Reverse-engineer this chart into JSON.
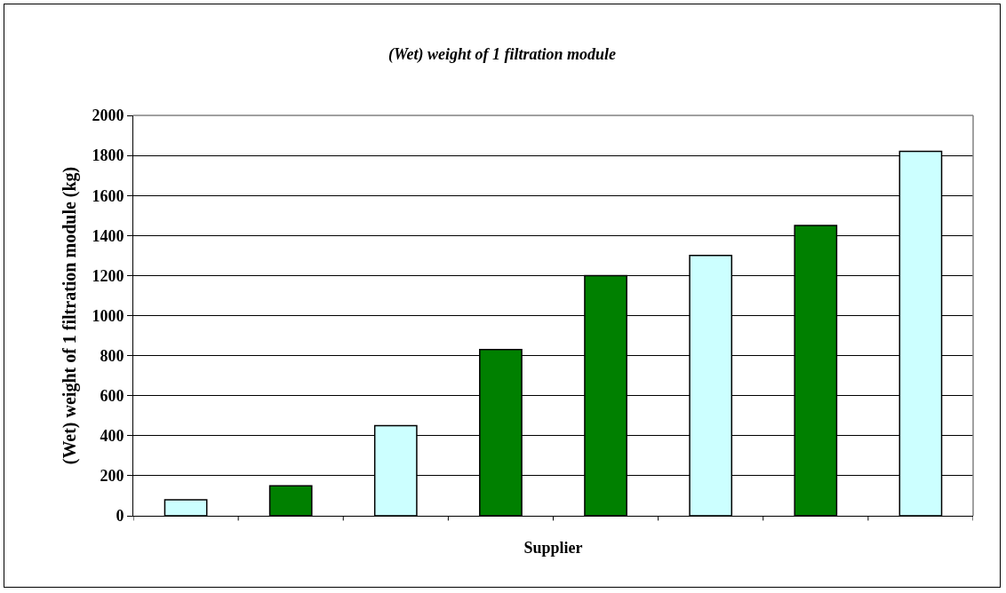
{
  "chart_data": {
    "type": "bar",
    "title": "(Wet) weight of 1 filtration module",
    "xlabel": "Supplier",
    "ylabel": "(Wet) weight of 1 filtration module (kg)",
    "categories": [
      null,
      null,
      null,
      null,
      null,
      null,
      null,
      null
    ],
    "values": [
      80,
      150,
      450,
      830,
      1200,
      1300,
      1450,
      1820
    ],
    "colors": [
      "#ccffff",
      "#008000",
      "#ccffff",
      "#008000",
      "#008000",
      "#ccffff",
      "#008000",
      "#ccffff"
    ],
    "ylim": [
      0,
      2000
    ],
    "yticks": [
      0,
      200,
      400,
      600,
      800,
      1000,
      1200,
      1400,
      1600,
      1800,
      2000
    ],
    "grid": "y"
  }
}
